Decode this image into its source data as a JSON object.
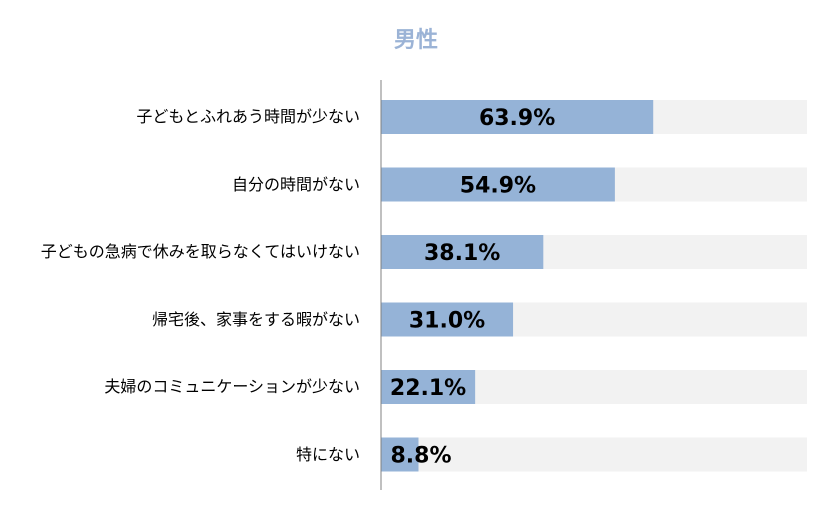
{
  "chart_data": {
    "type": "bar",
    "orientation": "horizontal",
    "title": "男性",
    "categories": [
      "子どもとふれあう時間が少ない",
      "自分の時間がない",
      "子どもの急病で休みを取らなくてはいけない",
      "帰宅後、家事をする暇がない",
      "夫婦のコミュニケーションが少ない",
      "特にない"
    ],
    "values": [
      63.9,
      54.9,
      38.1,
      31.0,
      22.1,
      8.8
    ],
    "value_labels": [
      "63.9%",
      "54.9%",
      "38.1%",
      "31.0%",
      "22.1%",
      "8.8%"
    ],
    "xlim": [
      0,
      100
    ],
    "unit": "%",
    "colors": {
      "bar": "#95b3d7",
      "track": "#f2f2f2",
      "axis": "#808080",
      "title": "#9bb3d6"
    }
  }
}
